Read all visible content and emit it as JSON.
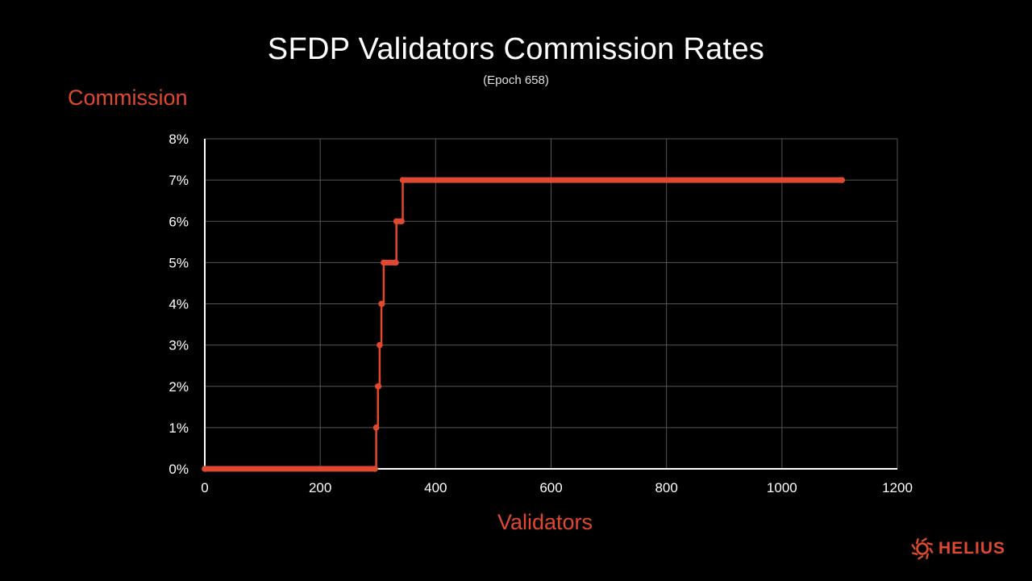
{
  "colors": {
    "accent": "#e0492f",
    "background": "#000000",
    "grid": "#555555",
    "axis": "#ffffff",
    "text": "#ffffff"
  },
  "logo": {
    "text": "HELIUS",
    "icon": "helius-sun-icon"
  },
  "chart_data": {
    "type": "line",
    "title": "SFDP Validators Commission Rates",
    "subtitle": "(Epoch 658)",
    "xlabel": "Validators",
    "ylabel": "Commission",
    "xlim": [
      0,
      1200
    ],
    "ylim": [
      0,
      8
    ],
    "x_ticks": [
      0,
      200,
      400,
      600,
      800,
      1000,
      1200
    ],
    "y_ticks": [
      0,
      1,
      2,
      3,
      4,
      5,
      6,
      7,
      8
    ],
    "y_tick_labels": [
      "0%",
      "1%",
      "2%",
      "3%",
      "4%",
      "5%",
      "6%",
      "7%",
      "8%"
    ],
    "grid": true,
    "legend": "none",
    "series": [
      {
        "segments": [
          {
            "value": 0,
            "x_start": 0,
            "x_end": 295
          },
          {
            "value": 1,
            "x_start": 297,
            "x_end": 297
          },
          {
            "value": 2,
            "x_start": 300,
            "x_end": 301
          },
          {
            "value": 3,
            "x_start": 303,
            "x_end": 303
          },
          {
            "value": 4,
            "x_start": 306,
            "x_end": 307
          },
          {
            "value": 5,
            "x_start": 310,
            "x_end": 331
          },
          {
            "value": 6,
            "x_start": 332,
            "x_end": 341
          },
          {
            "value": 7,
            "x_start": 343,
            "x_end": 1104
          }
        ]
      }
    ]
  }
}
